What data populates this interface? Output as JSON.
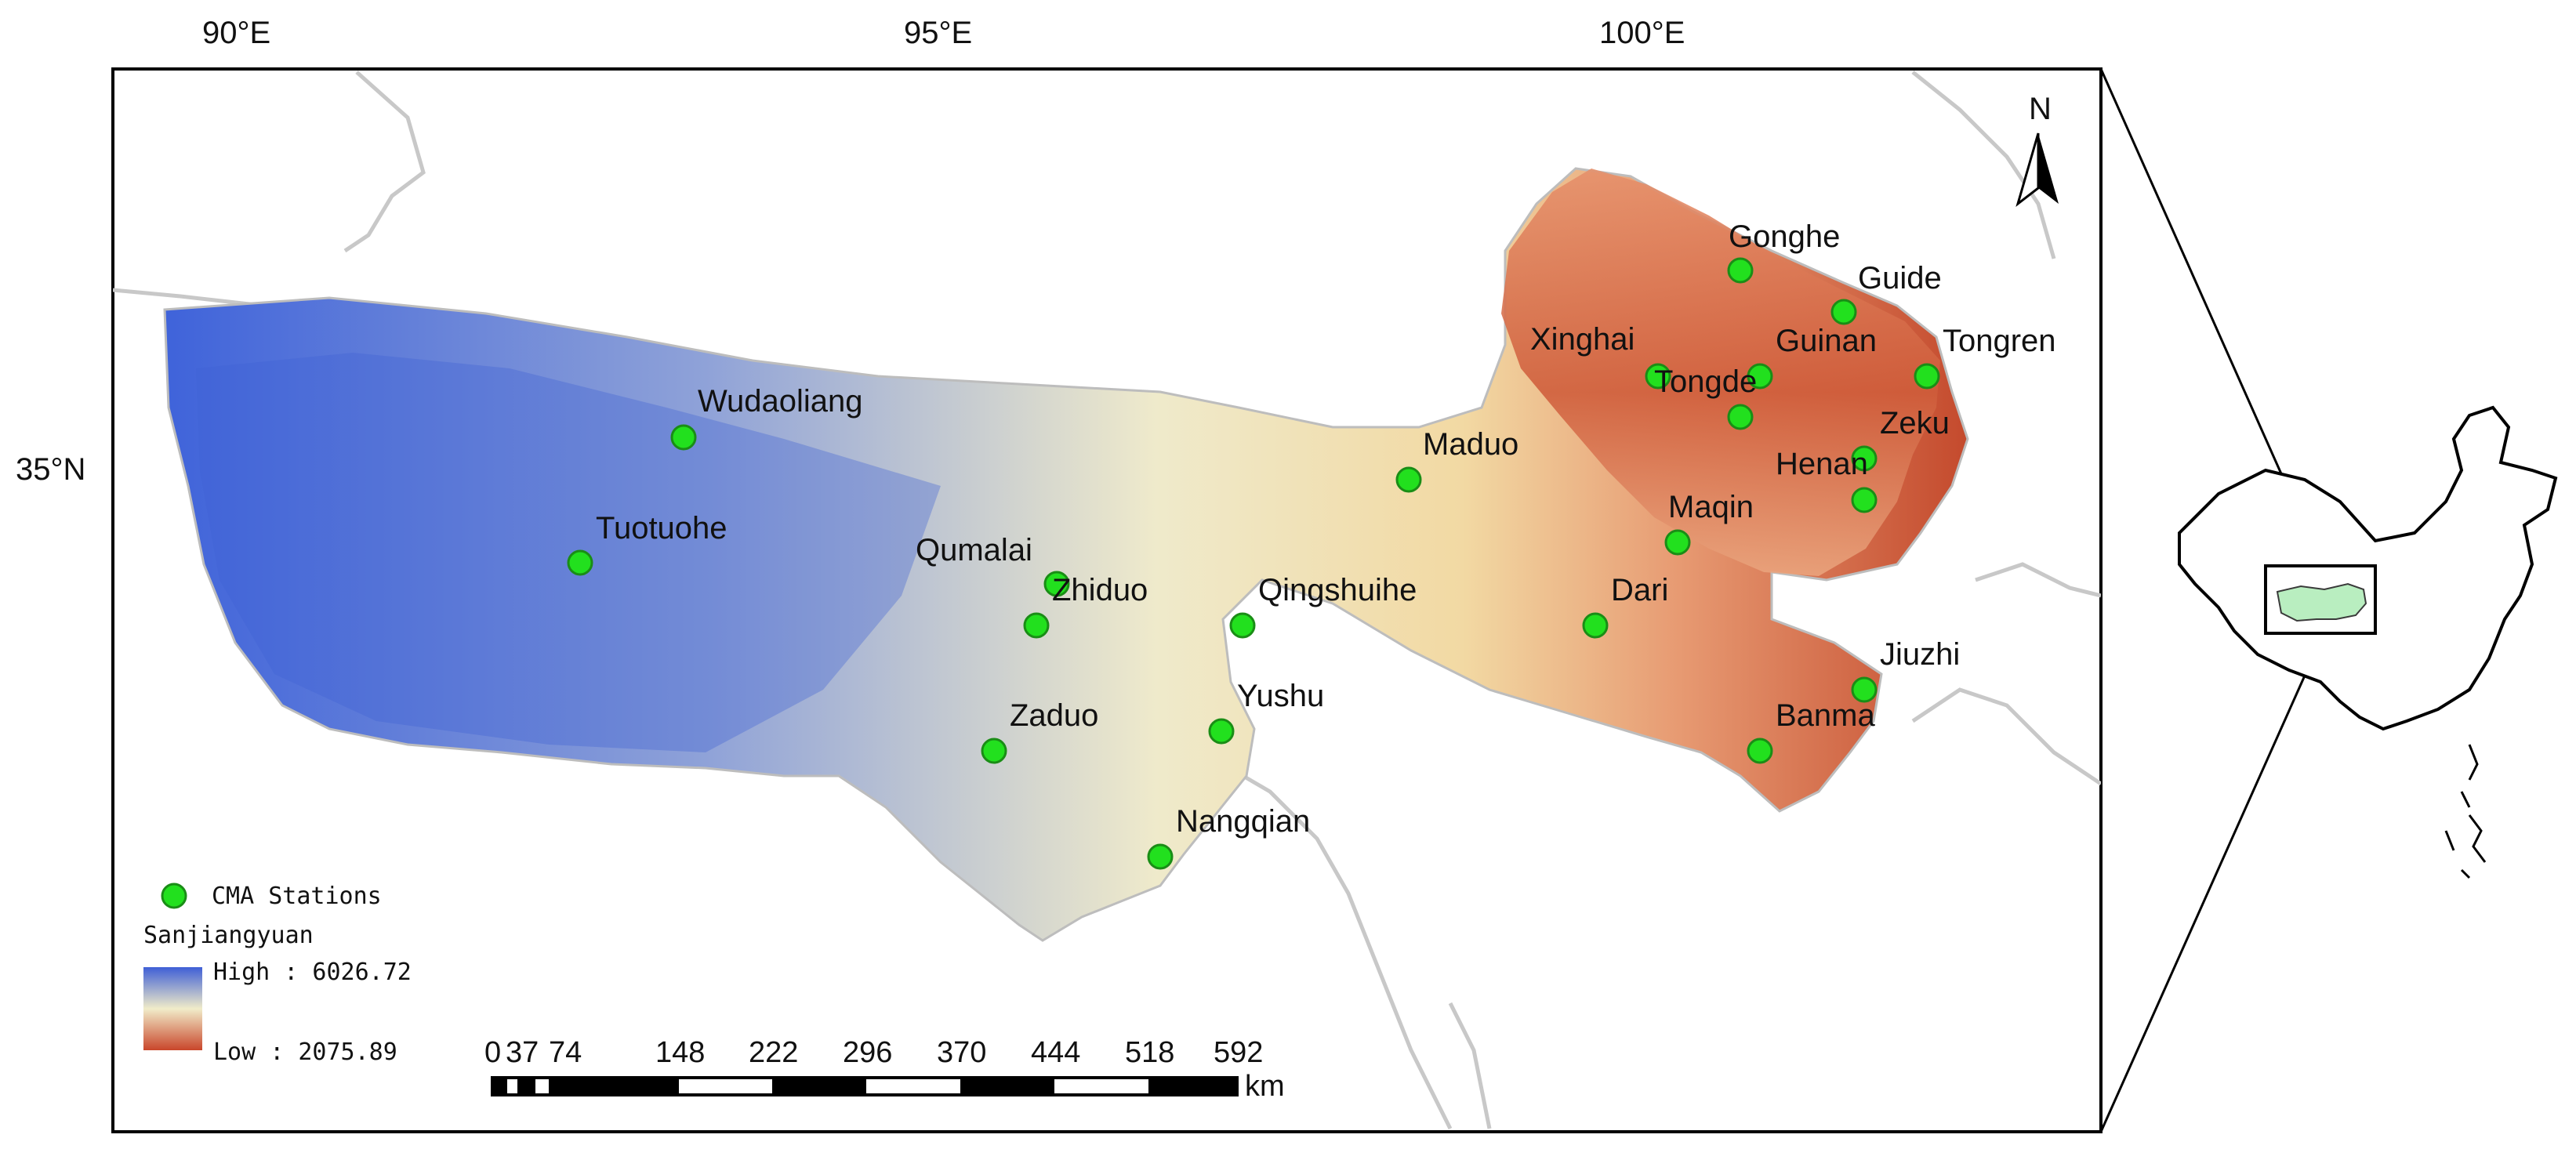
{
  "map": {
    "longitude_labels": [
      "90°E",
      "95°E",
      "100°E"
    ],
    "latitude_labels": [
      "35°N"
    ],
    "north_arrow": "N",
    "stations": [
      {
        "name": "Gonghe"
      },
      {
        "name": "Guide"
      },
      {
        "name": "Xinghai"
      },
      {
        "name": "Guinan"
      },
      {
        "name": "Tongren"
      },
      {
        "name": "Tongde"
      },
      {
        "name": "Zeku"
      },
      {
        "name": "Henan"
      },
      {
        "name": "Wudaoliang"
      },
      {
        "name": "Maduo"
      },
      {
        "name": "Maqin"
      },
      {
        "name": "Tuotuohe"
      },
      {
        "name": "Qumalai"
      },
      {
        "name": "Zhiduo"
      },
      {
        "name": "Qingshuihe"
      },
      {
        "name": "Dari"
      },
      {
        "name": "Jiuzhi"
      },
      {
        "name": "Yushu"
      },
      {
        "name": "Banma"
      },
      {
        "name": "Zaduo"
      },
      {
        "name": "Nangqian"
      }
    ]
  },
  "legend": {
    "stations_label": "CMA Stations",
    "layer_title": "Sanjiangyuan",
    "high_label": "High : 6026.72",
    "low_label": "Low : 2075.89",
    "colors": {
      "high": "#3a5bd6",
      "mid": "#f3edc8",
      "low": "#c24a2a",
      "station": "#22e01e"
    }
  },
  "scalebar": {
    "ticks": [
      "0",
      "37",
      "74",
      "148",
      "222",
      "296",
      "370",
      "444",
      "518",
      "592"
    ],
    "unit": "km"
  }
}
